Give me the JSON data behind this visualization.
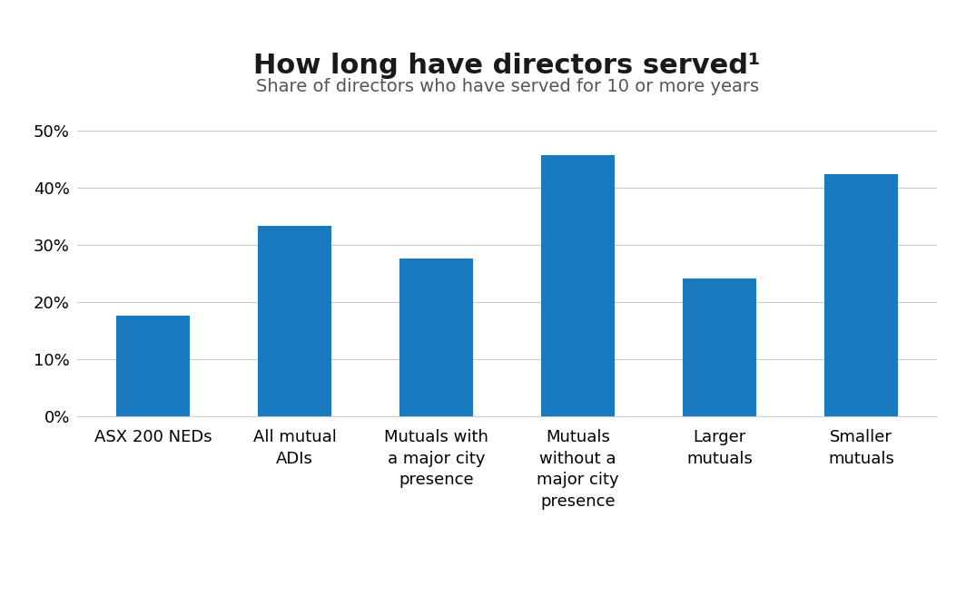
{
  "title": "How long have directors served¹",
  "subtitle": "Share of directors who have served for 10 or more years",
  "categories": [
    "ASX 200 NEDs",
    "All mutual\nADIs",
    "Mutuals with\na major city\npresence",
    "Mutuals\nwithout a\nmajor city\npresence",
    "Larger\nmutuals",
    "Smaller\nmutuals"
  ],
  "values": [
    0.177,
    0.334,
    0.276,
    0.457,
    0.242,
    0.423
  ],
  "bar_color": "#1a7abf",
  "background_color": "#ffffff",
  "ylim": [
    0,
    0.52
  ],
  "yticks": [
    0.0,
    0.1,
    0.2,
    0.3,
    0.4,
    0.5
  ],
  "title_fontsize": 22,
  "subtitle_fontsize": 14,
  "tick_fontsize": 13,
  "bar_width": 0.52,
  "grid_color": "#cccccc",
  "title_color": "#1a1a1a",
  "subtitle_color": "#555555"
}
